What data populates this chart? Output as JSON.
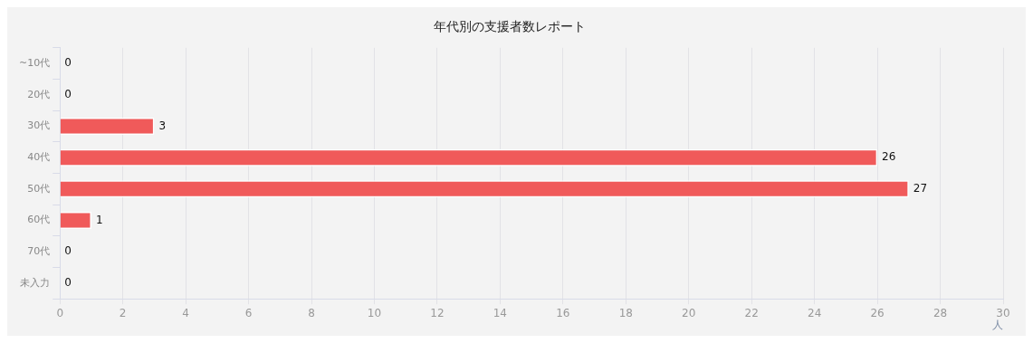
{
  "chart_data": {
    "type": "bar",
    "orientation": "horizontal",
    "title": "年代別の支援者数レポート",
    "xlabel": "人",
    "categories": [
      "~10代",
      "20代",
      "30代",
      "40代",
      "50代",
      "60代",
      "70代",
      "未入力"
    ],
    "values": [
      0,
      0,
      3,
      26,
      27,
      1,
      0,
      0
    ],
    "color": "#f05a5a",
    "xlim": [
      0,
      30
    ],
    "xticks": [
      0,
      2,
      4,
      6,
      8,
      10,
      12,
      14,
      16,
      18,
      20,
      22,
      24,
      26,
      28,
      30
    ],
    "grid": "x",
    "data_labels": true,
    "legend": false
  }
}
